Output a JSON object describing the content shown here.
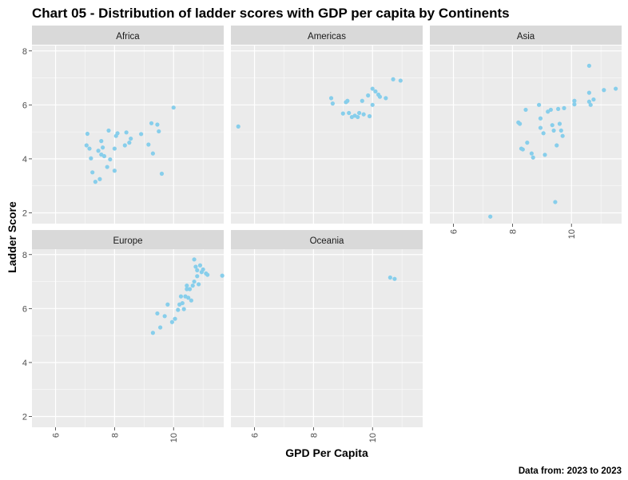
{
  "chart_data": {
    "type": "scatter",
    "title": "Chart 05 - Distribution of ladder scores with GDP per capita by Continents",
    "xlabel": "GPD Per Capita",
    "ylabel": "Ladder Score",
    "caption": "Data from: 2023  to  2023",
    "xlim": [
      5.2,
      11.7
    ],
    "ylim": [
      1.6,
      8.2
    ],
    "x_ticks": [
      6,
      8,
      10
    ],
    "y_ticks": [
      2,
      4,
      6,
      8
    ],
    "grid": true,
    "point_color": "#87CEEB",
    "panel_background": "#EBEBEB",
    "strip_background": "#D9D9D9",
    "panels": [
      {
        "name": "Africa",
        "points": [
          [
            7.05,
            4.5
          ],
          [
            7.08,
            4.93
          ],
          [
            7.15,
            4.38
          ],
          [
            7.2,
            4.02
          ],
          [
            7.25,
            3.5
          ],
          [
            7.35,
            3.15
          ],
          [
            7.45,
            4.3
          ],
          [
            7.5,
            3.25
          ],
          [
            7.55,
            4.66
          ],
          [
            7.55,
            4.16
          ],
          [
            7.6,
            4.42
          ],
          [
            7.65,
            4.1
          ],
          [
            7.75,
            3.7
          ],
          [
            7.8,
            5.05
          ],
          [
            7.85,
            3.98
          ],
          [
            8.0,
            4.38
          ],
          [
            8.0,
            3.56
          ],
          [
            8.05,
            4.85
          ],
          [
            8.1,
            4.95
          ],
          [
            8.35,
            4.5
          ],
          [
            8.4,
            4.98
          ],
          [
            8.5,
            4.6
          ],
          [
            8.55,
            4.75
          ],
          [
            8.9,
            4.92
          ],
          [
            9.15,
            4.53
          ],
          [
            9.25,
            5.32
          ],
          [
            9.3,
            4.2
          ],
          [
            9.45,
            5.27
          ],
          [
            9.5,
            5.02
          ],
          [
            9.6,
            3.45
          ],
          [
            10.0,
            5.9
          ]
        ]
      },
      {
        "name": "Americas",
        "points": [
          [
            5.45,
            5.2
          ],
          [
            8.6,
            6.25
          ],
          [
            8.65,
            6.05
          ],
          [
            9.0,
            5.68
          ],
          [
            9.1,
            6.1
          ],
          [
            9.15,
            6.15
          ],
          [
            9.2,
            5.7
          ],
          [
            9.3,
            5.55
          ],
          [
            9.4,
            5.6
          ],
          [
            9.5,
            5.55
          ],
          [
            9.55,
            5.7
          ],
          [
            9.65,
            6.15
          ],
          [
            9.7,
            5.65
          ],
          [
            9.85,
            6.35
          ],
          [
            9.9,
            5.58
          ],
          [
            10.0,
            6.0
          ],
          [
            10.0,
            6.6
          ],
          [
            10.1,
            6.5
          ],
          [
            10.2,
            6.38
          ],
          [
            10.25,
            6.3
          ],
          [
            10.45,
            6.25
          ],
          [
            10.7,
            6.95
          ],
          [
            10.95,
            6.9
          ]
        ]
      },
      {
        "name": "Asia",
        "points": [
          [
            7.25,
            1.86
          ],
          [
            8.2,
            5.35
          ],
          [
            8.25,
            5.3
          ],
          [
            8.3,
            4.38
          ],
          [
            8.35,
            4.35
          ],
          [
            8.45,
            5.82
          ],
          [
            8.5,
            4.6
          ],
          [
            8.65,
            4.2
          ],
          [
            8.7,
            4.05
          ],
          [
            8.9,
            6.0
          ],
          [
            8.95,
            5.5
          ],
          [
            8.95,
            5.15
          ],
          [
            9.05,
            4.95
          ],
          [
            9.1,
            4.15
          ],
          [
            9.2,
            5.75
          ],
          [
            9.3,
            5.82
          ],
          [
            9.35,
            5.25
          ],
          [
            9.4,
            5.05
          ],
          [
            9.45,
            2.4
          ],
          [
            9.5,
            4.5
          ],
          [
            9.55,
            5.85
          ],
          [
            9.6,
            5.3
          ],
          [
            9.65,
            5.05
          ],
          [
            9.7,
            4.85
          ],
          [
            9.75,
            5.88
          ],
          [
            10.1,
            6.15
          ],
          [
            10.1,
            6.02
          ],
          [
            10.6,
            7.45
          ],
          [
            10.6,
            6.45
          ],
          [
            10.6,
            6.12
          ],
          [
            10.65,
            6.0
          ],
          [
            10.75,
            6.2
          ],
          [
            11.1,
            6.55
          ],
          [
            11.5,
            6.6
          ]
        ]
      },
      {
        "name": "Europe",
        "points": [
          [
            9.3,
            5.1
          ],
          [
            9.45,
            5.82
          ],
          [
            9.55,
            5.3
          ],
          [
            9.7,
            5.72
          ],
          [
            9.8,
            6.15
          ],
          [
            9.95,
            5.5
          ],
          [
            10.05,
            5.62
          ],
          [
            10.15,
            5.95
          ],
          [
            10.2,
            6.15
          ],
          [
            10.25,
            6.45
          ],
          [
            10.3,
            6.2
          ],
          [
            10.35,
            5.98
          ],
          [
            10.4,
            6.45
          ],
          [
            10.45,
            6.85
          ],
          [
            10.45,
            6.72
          ],
          [
            10.5,
            6.4
          ],
          [
            10.55,
            6.72
          ],
          [
            10.6,
            6.3
          ],
          [
            10.65,
            6.85
          ],
          [
            10.7,
            7.0
          ],
          [
            10.7,
            7.82
          ],
          [
            10.75,
            7.55
          ],
          [
            10.8,
            7.42
          ],
          [
            10.8,
            7.2
          ],
          [
            10.85,
            6.9
          ],
          [
            10.9,
            7.6
          ],
          [
            10.95,
            7.35
          ],
          [
            11.0,
            7.45
          ],
          [
            11.1,
            7.3
          ],
          [
            11.15,
            7.25
          ],
          [
            11.65,
            7.22
          ]
        ]
      },
      {
        "name": "Oceania",
        "points": [
          [
            10.6,
            7.15
          ],
          [
            10.75,
            7.1
          ]
        ]
      }
    ]
  }
}
